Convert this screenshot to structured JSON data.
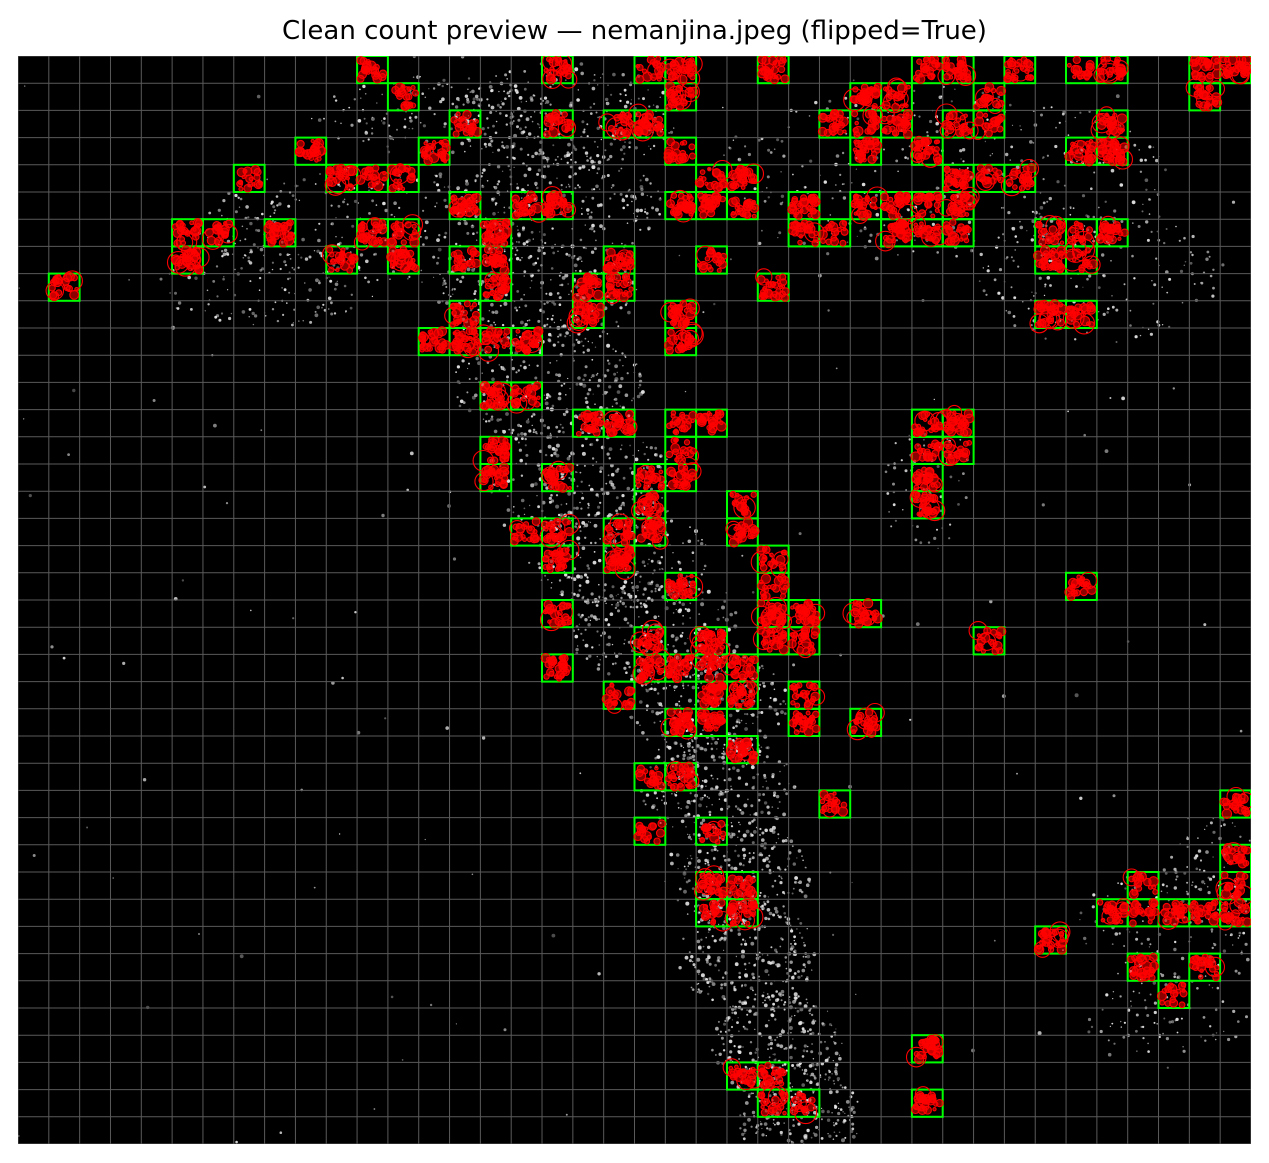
{
  "figure": {
    "title": "Clean count preview — nemanjina.jpeg (flipped=True)",
    "colors": {
      "background": "#000000",
      "grid_line": "#5a5a5a",
      "tile_outline": "#00ff00",
      "detection": "#ff0000",
      "cell_dots": "#e8e8e8"
    },
    "grid": {
      "columns": 40,
      "rows": 40
    },
    "selected_tiles": [
      [
        11,
        0
      ],
      [
        17,
        0
      ],
      [
        20,
        0
      ],
      [
        21,
        0
      ],
      [
        24,
        0
      ],
      [
        29,
        0
      ],
      [
        30,
        0
      ],
      [
        32,
        0
      ],
      [
        34,
        0
      ],
      [
        35,
        0
      ],
      [
        38,
        0
      ],
      [
        39,
        0
      ],
      [
        12,
        1
      ],
      [
        21,
        1
      ],
      [
        27,
        1
      ],
      [
        28,
        1
      ],
      [
        31,
        1
      ],
      [
        38,
        1
      ],
      [
        14,
        2
      ],
      [
        17,
        2
      ],
      [
        19,
        2
      ],
      [
        20,
        2
      ],
      [
        26,
        2
      ],
      [
        27,
        2
      ],
      [
        28,
        2
      ],
      [
        30,
        2
      ],
      [
        31,
        2
      ],
      [
        35,
        2
      ],
      [
        9,
        3
      ],
      [
        13,
        3
      ],
      [
        21,
        3
      ],
      [
        27,
        3
      ],
      [
        29,
        3
      ],
      [
        34,
        3
      ],
      [
        35,
        3
      ],
      [
        7,
        4
      ],
      [
        10,
        4
      ],
      [
        11,
        4
      ],
      [
        12,
        4
      ],
      [
        22,
        4
      ],
      [
        23,
        4
      ],
      [
        30,
        4
      ],
      [
        31,
        4
      ],
      [
        32,
        4
      ],
      [
        14,
        5
      ],
      [
        16,
        5
      ],
      [
        17,
        5
      ],
      [
        21,
        5
      ],
      [
        22,
        5
      ],
      [
        23,
        5
      ],
      [
        25,
        5
      ],
      [
        27,
        5
      ],
      [
        28,
        5
      ],
      [
        29,
        5
      ],
      [
        30,
        5
      ],
      [
        5,
        6
      ],
      [
        6,
        6
      ],
      [
        8,
        6
      ],
      [
        11,
        6
      ],
      [
        12,
        6
      ],
      [
        15,
        6
      ],
      [
        25,
        6
      ],
      [
        26,
        6
      ],
      [
        28,
        6
      ],
      [
        29,
        6
      ],
      [
        30,
        6
      ],
      [
        33,
        6
      ],
      [
        34,
        6
      ],
      [
        35,
        6
      ],
      [
        5,
        7
      ],
      [
        10,
        7
      ],
      [
        12,
        7
      ],
      [
        14,
        7
      ],
      [
        15,
        7
      ],
      [
        19,
        7
      ],
      [
        22,
        7
      ],
      [
        33,
        7
      ],
      [
        34,
        7
      ],
      [
        1,
        8
      ],
      [
        15,
        8
      ],
      [
        18,
        8
      ],
      [
        19,
        8
      ],
      [
        24,
        8
      ],
      [
        14,
        9
      ],
      [
        18,
        9
      ],
      [
        21,
        9
      ],
      [
        33,
        9
      ],
      [
        34,
        9
      ],
      [
        13,
        10
      ],
      [
        14,
        10
      ],
      [
        15,
        10
      ],
      [
        16,
        10
      ],
      [
        21,
        10
      ],
      [
        15,
        12
      ],
      [
        16,
        12
      ],
      [
        18,
        13
      ],
      [
        19,
        13
      ],
      [
        21,
        13
      ],
      [
        22,
        13
      ],
      [
        29,
        13
      ],
      [
        30,
        13
      ],
      [
        15,
        14
      ],
      [
        21,
        14
      ],
      [
        29,
        14
      ],
      [
        30,
        14
      ],
      [
        15,
        15
      ],
      [
        17,
        15
      ],
      [
        20,
        15
      ],
      [
        21,
        15
      ],
      [
        29,
        15
      ],
      [
        20,
        16
      ],
      [
        23,
        16
      ],
      [
        29,
        16
      ],
      [
        16,
        17
      ],
      [
        17,
        17
      ],
      [
        19,
        17
      ],
      [
        20,
        17
      ],
      [
        23,
        17
      ],
      [
        17,
        18
      ],
      [
        19,
        18
      ],
      [
        24,
        18
      ],
      [
        21,
        19
      ],
      [
        24,
        19
      ],
      [
        34,
        19
      ],
      [
        17,
        20
      ],
      [
        24,
        20
      ],
      [
        25,
        20
      ],
      [
        27,
        20
      ],
      [
        20,
        21
      ],
      [
        22,
        21
      ],
      [
        24,
        21
      ],
      [
        25,
        21
      ],
      [
        31,
        21
      ],
      [
        17,
        22
      ],
      [
        20,
        22
      ],
      [
        21,
        22
      ],
      [
        22,
        22
      ],
      [
        23,
        22
      ],
      [
        19,
        23
      ],
      [
        22,
        23
      ],
      [
        23,
        23
      ],
      [
        25,
        23
      ],
      [
        21,
        24
      ],
      [
        22,
        24
      ],
      [
        25,
        24
      ],
      [
        27,
        24
      ],
      [
        23,
        25
      ],
      [
        20,
        26
      ],
      [
        21,
        26
      ],
      [
        26,
        27
      ],
      [
        39,
        27
      ],
      [
        20,
        28
      ],
      [
        22,
        28
      ],
      [
        39,
        29
      ],
      [
        22,
        30
      ],
      [
        23,
        30
      ],
      [
        36,
        30
      ],
      [
        39,
        30
      ],
      [
        22,
        31
      ],
      [
        23,
        31
      ],
      [
        35,
        31
      ],
      [
        36,
        31
      ],
      [
        37,
        31
      ],
      [
        38,
        31
      ],
      [
        39,
        31
      ],
      [
        33,
        32
      ],
      [
        36,
        33
      ],
      [
        38,
        33
      ],
      [
        37,
        34
      ],
      [
        29,
        36
      ],
      [
        23,
        37
      ],
      [
        24,
        37
      ],
      [
        24,
        38
      ],
      [
        25,
        38
      ],
      [
        29,
        38
      ]
    ]
  }
}
